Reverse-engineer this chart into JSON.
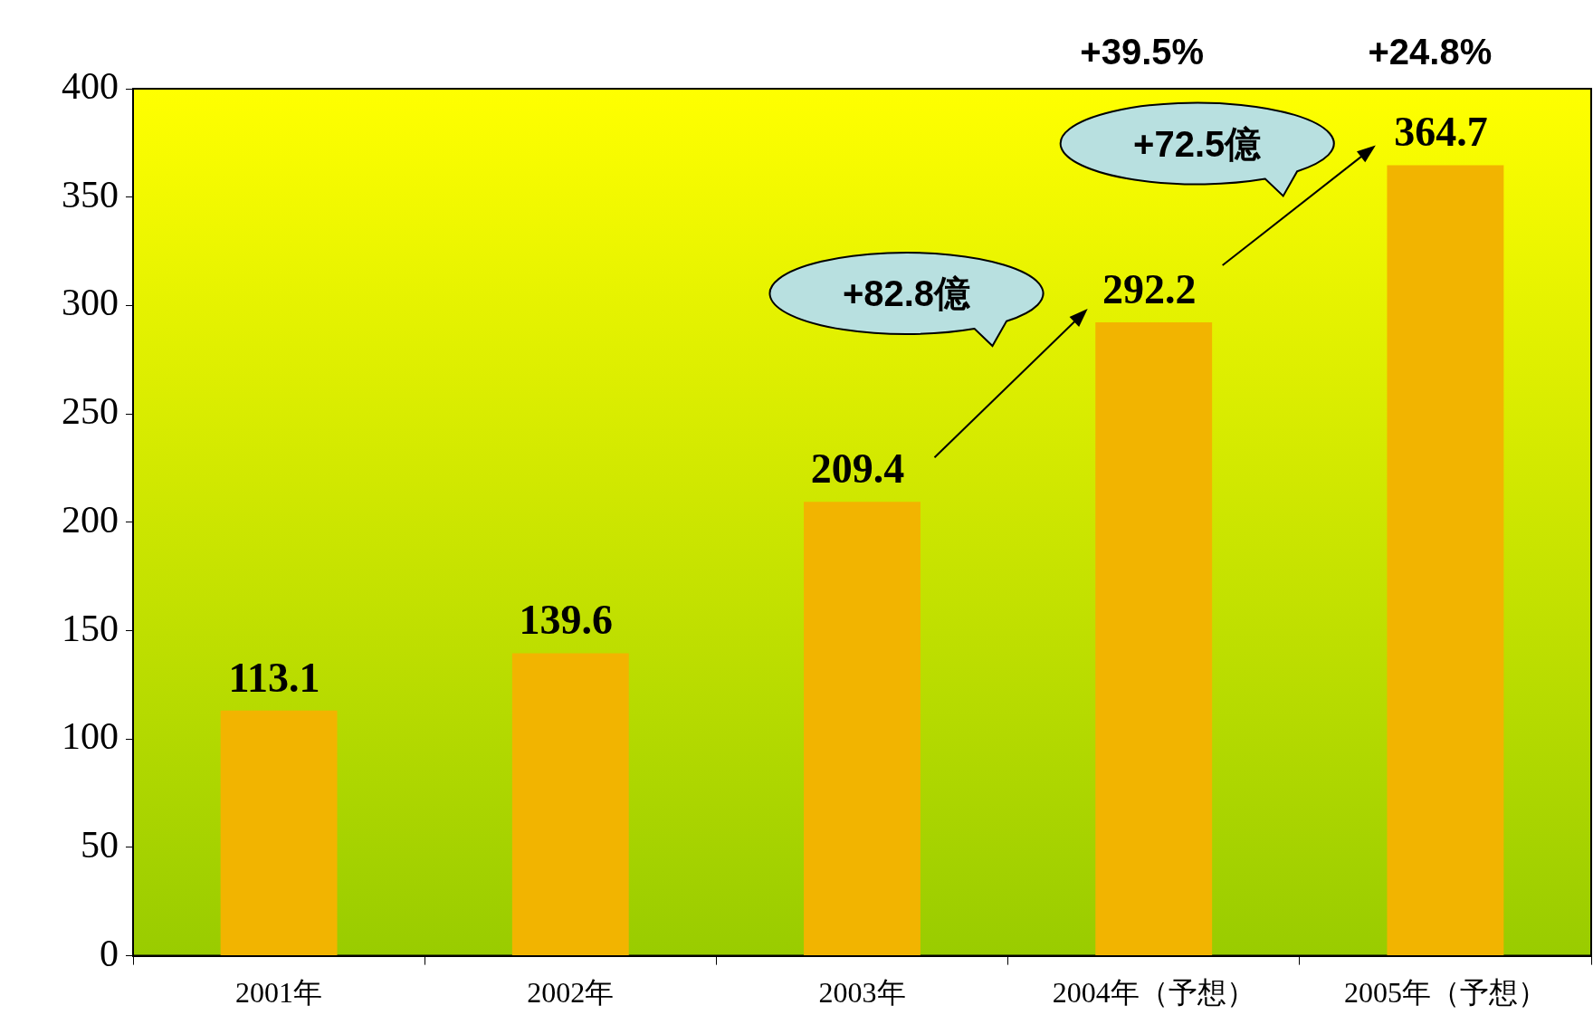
{
  "chart_data": {
    "type": "bar",
    "categories": [
      "2001年",
      "2002年",
      "2003年",
      "2004年（予想）",
      "2005年（予想）"
    ],
    "values": [
      113.1,
      139.6,
      209.4,
      292.2,
      364.7
    ],
    "color": "#f2b400",
    "ylim": [
      0,
      400
    ],
    "yticks": [
      0,
      50,
      100,
      150,
      200,
      250,
      300,
      350,
      400
    ],
    "grid": false,
    "legend": false,
    "data_labels": true,
    "annotations": [
      "+39.5%",
      "+24.8%",
      "+82.8億",
      "+72.5億"
    ]
  }
}
